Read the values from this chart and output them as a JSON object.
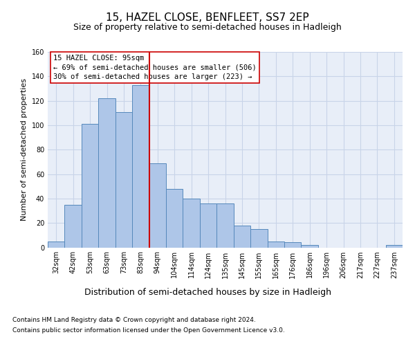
{
  "title": "15, HAZEL CLOSE, BENFLEET, SS7 2EP",
  "subtitle": "Size of property relative to semi-detached houses in Hadleigh",
  "xlabel": "Distribution of semi-detached houses by size in Hadleigh",
  "ylabel": "Number of semi-detached properties",
  "categories": [
    "32sqm",
    "42sqm",
    "53sqm",
    "63sqm",
    "73sqm",
    "83sqm",
    "94sqm",
    "104sqm",
    "114sqm",
    "124sqm",
    "135sqm",
    "145sqm",
    "155sqm",
    "165sqm",
    "176sqm",
    "186sqm",
    "196sqm",
    "206sqm",
    "217sqm",
    "227sqm",
    "237sqm"
  ],
  "values": [
    5,
    35,
    101,
    122,
    111,
    133,
    69,
    48,
    40,
    36,
    36,
    18,
    15,
    5,
    4,
    2,
    0,
    0,
    0,
    0,
    2
  ],
  "bar_color": "#aec6e8",
  "bar_edge_color": "#5588bb",
  "vline_color": "#cc0000",
  "annotation_text": "15 HAZEL CLOSE: 95sqm\n← 69% of semi-detached houses are smaller (506)\n30% of semi-detached houses are larger (223) →",
  "annotation_box_color": "#ffffff",
  "annotation_box_edge_color": "#cc0000",
  "ylim": [
    0,
    160
  ],
  "yticks": [
    0,
    20,
    40,
    60,
    80,
    100,
    120,
    140,
    160
  ],
  "grid_color": "#c8d4e8",
  "background_color": "#e8eef8",
  "footer_line1": "Contains HM Land Registry data © Crown copyright and database right 2024.",
  "footer_line2": "Contains public sector information licensed under the Open Government Licence v3.0.",
  "title_fontsize": 11,
  "subtitle_fontsize": 9,
  "xlabel_fontsize": 9,
  "ylabel_fontsize": 8,
  "tick_fontsize": 7,
  "footer_fontsize": 6.5,
  "annotation_fontsize": 7.5
}
